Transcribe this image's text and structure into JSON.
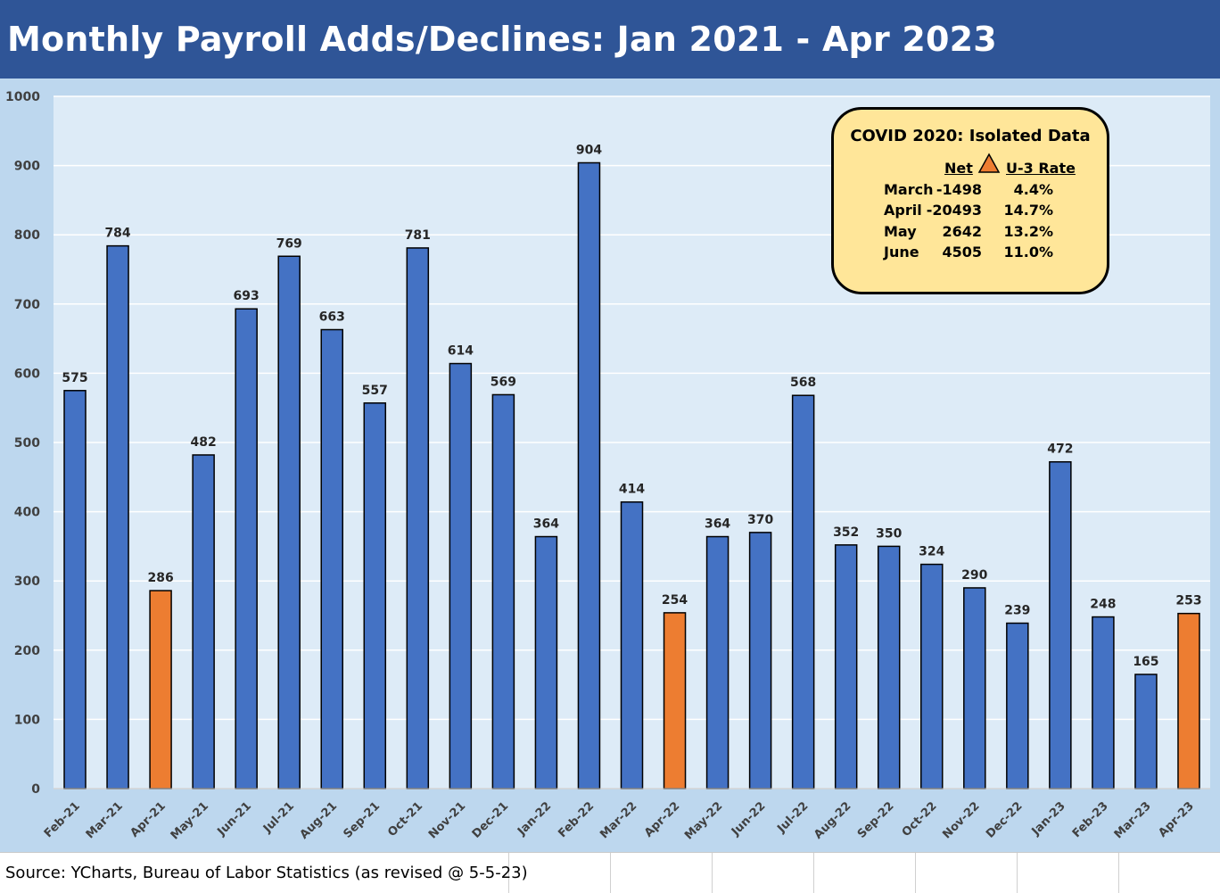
{
  "title": "Monthly Payroll Adds/Declines: Jan 2021 - Apr 2023",
  "source": "Source: YCharts, Bureau of Labor Statistics (as revised @ 5-5-23)",
  "colors": {
    "title_bg": "#2f5597",
    "bar_blue": "#4472c4",
    "bar_orange": "#ed7d31",
    "plot_bg": "#ddebf7",
    "outer_bg": "#bdd7ee",
    "box_bg": "#ffe699"
  },
  "chart_data": {
    "type": "bar",
    "title": "Monthly Payroll Adds/Declines: Jan 2021 - Apr 2023",
    "xlabel": "",
    "ylabel": "",
    "ylim": [
      0,
      1000
    ],
    "yticks": [
      0,
      100,
      200,
      300,
      400,
      500,
      600,
      700,
      800,
      900,
      1000
    ],
    "grid": true,
    "categories": [
      "Feb-21",
      "Mar-21",
      "Apr-21",
      "May-21",
      "Jun-21",
      "Jul-21",
      "Aug-21",
      "Sep-21",
      "Oct-21",
      "Nov-21",
      "Dec-21",
      "Jan-22",
      "Feb-22",
      "Mar-22",
      "Apr-22",
      "May-22",
      "Jun-22",
      "Jul-22",
      "Aug-22",
      "Sep-22",
      "Oct-22",
      "Nov-22",
      "Dec-22",
      "Jan-23",
      "Feb-23",
      "Mar-23",
      "Apr-23"
    ],
    "values": [
      575,
      784,
      286,
      482,
      693,
      769,
      663,
      557,
      781,
      614,
      569,
      364,
      904,
      414,
      254,
      364,
      370,
      568,
      352,
      350,
      324,
      290,
      239,
      472,
      248,
      165,
      253
    ],
    "highlighted": [
      "Apr-21",
      "Apr-22",
      "Apr-23"
    ]
  },
  "info_box": {
    "title": "COVID 2020: Isolated Data",
    "headers": {
      "net": "Net",
      "rate": "U-3 Rate"
    },
    "delta_icon": "orange-triangle-icon",
    "rows": [
      {
        "month": "March",
        "net": "-1498",
        "rate": "4.4%"
      },
      {
        "month": "April",
        "net": "-20493",
        "rate": "14.7%"
      },
      {
        "month": "May",
        "net": "2642",
        "rate": "13.2%"
      },
      {
        "month": "June",
        "net": "4505",
        "rate": "11.0%"
      }
    ]
  }
}
